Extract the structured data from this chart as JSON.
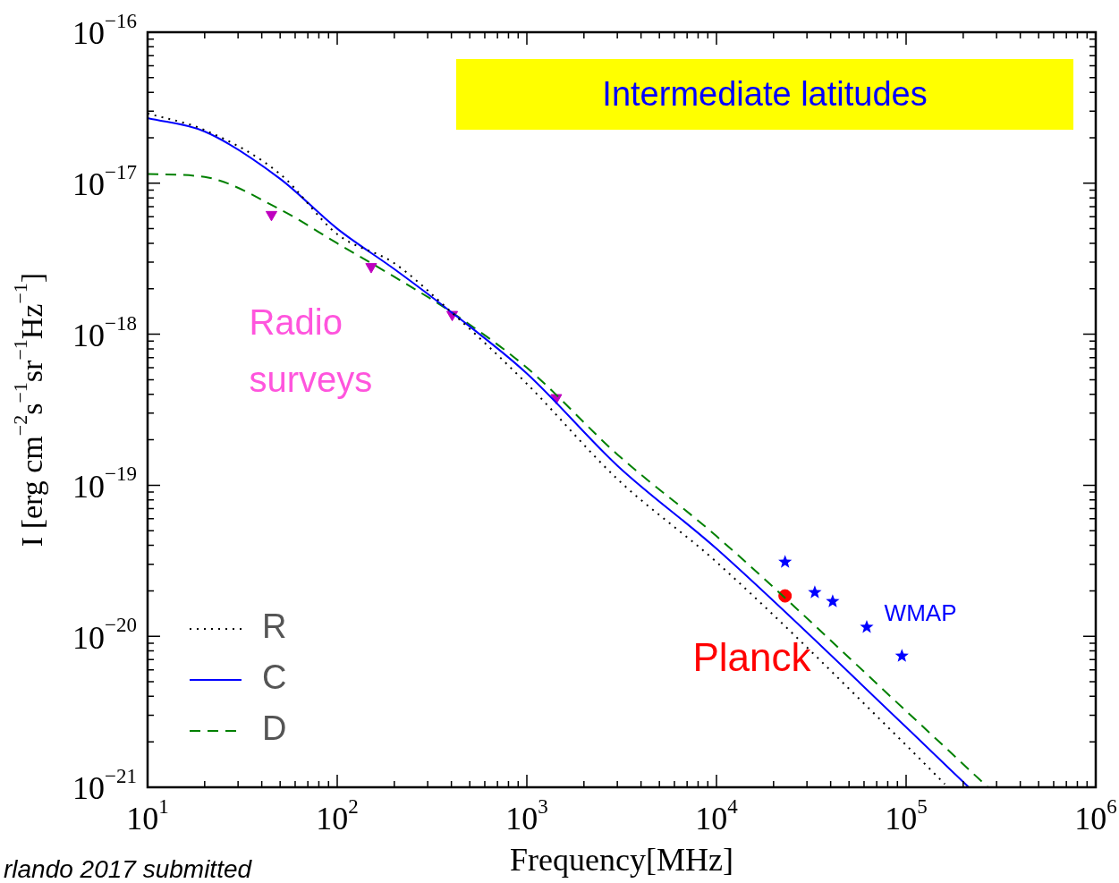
{
  "chart_data": {
    "type": "line",
    "xlabel": "Frequency[MHz]",
    "ylabel": "I [erg cm$^{−2}$s$^{−1}$sr$^{−1}$Hz$^{−1}$]",
    "log": "xy",
    "xlim": [
      10,
      1000000
    ],
    "ylim": [
      1e-21,
      1e-16
    ],
    "xticks": [
      {
        "value": 10,
        "label": "10$^{1}$"
      },
      {
        "value": 100,
        "label": "10$^{2}$"
      },
      {
        "value": 1000,
        "label": "10$^{3}$"
      },
      {
        "value": 10000,
        "label": "10$^{4}$"
      },
      {
        "value": 100000,
        "label": "10$^{5}$"
      },
      {
        "value": 1000000,
        "label": "10$^{6}$"
      }
    ],
    "yticks": [
      {
        "value": 1e-21,
        "label": "10$^{−21}$"
      },
      {
        "value": 1e-20,
        "label": "10$^{−20}$"
      },
      {
        "value": 1e-19,
        "label": "10$^{−19}$"
      },
      {
        "value": 1e-18,
        "label": "10$^{−18}$"
      },
      {
        "value": 1e-17,
        "label": "10$^{−17}$"
      },
      {
        "value": 1e-16,
        "label": "10$^{−16}$"
      }
    ],
    "legend": "bottom left",
    "series": [
      {
        "name": "R",
        "line_style": "dotted",
        "color": "#000000",
        "x": [
          10,
          20,
          50,
          100,
          200,
          400,
          1000,
          3000,
          10000,
          100000,
          160000
        ],
        "values": [
          2.9e-17,
          2.25e-17,
          1.15e-17,
          4.6e-18,
          2.95e-18,
          1.4e-18,
          4.7e-19,
          1.1e-19,
          3.1e-20,
          1.9e-21,
          1.05e-21
        ]
      },
      {
        "name": "C",
        "line_style": "solid",
        "color": "#0000ff",
        "x": [
          10,
          20,
          50,
          100,
          200,
          400,
          1000,
          3000,
          10000,
          100000,
          214000
        ],
        "values": [
          2.7e-17,
          2.2e-17,
          1.07e-17,
          5e-18,
          2.7e-18,
          1.4e-18,
          5.5e-19,
          1.35e-19,
          3.8e-20,
          2.5e-21,
          1e-21
        ]
      },
      {
        "name": "D",
        "line_style": "dashed",
        "color": "#008000",
        "x": [
          10,
          20,
          50,
          100,
          200,
          400,
          1000,
          3000,
          10000,
          100000,
          270000
        ],
        "values": [
          1.15e-17,
          1.1e-17,
          6.7e-18,
          4e-18,
          2.4e-18,
          1.4e-18,
          6e-19,
          1.6e-19,
          4.6e-20,
          3.2e-21,
          1e-21
        ]
      },
      {
        "type": "scatter",
        "marker": "triangle",
        "color": "#bf00bf",
        "x": [
          45,
          151,
          404,
          1430
        ],
        "values": [
          6.2e-18,
          2.8e-18,
          1.35e-18,
          3.8e-19
        ]
      },
      {
        "type": "scatter",
        "marker": "circle",
        "color": "#ff0000",
        "x": [
          23000
        ],
        "values": [
          1.85e-20
        ]
      },
      {
        "type": "scatter",
        "marker": "star",
        "color": "#0000ff",
        "x": [
          23000,
          33000,
          41000,
          62000,
          95000
        ],
        "values": [
          3.1e-20,
          1.95e-20,
          1.7e-20,
          1.15e-20,
          7.4e-21
        ]
      }
    ],
    "annotations": [
      "Intermediate latitudes",
      "Radio surveys",
      "Planck",
      "WMAP",
      "rlando 2017 submitted"
    ]
  }
}
